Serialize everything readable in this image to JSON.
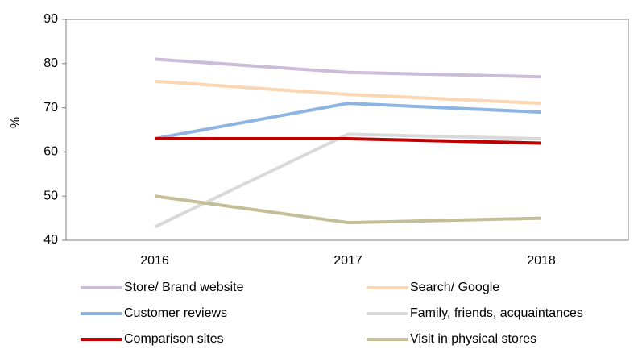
{
  "chart_data": {
    "type": "line",
    "y_label": "%",
    "categories": [
      "2016",
      "2017",
      "2018"
    ],
    "series": [
      {
        "name": "Store/ Brand website",
        "color": "#cbbcd9",
        "values": [
          81,
          78,
          77
        ]
      },
      {
        "name": "Search/ Google",
        "color": "#fcd5b2",
        "values": [
          76,
          73,
          71
        ]
      },
      {
        "name": "Customer reviews",
        "color": "#8eb4e3",
        "values": [
          63,
          71,
          69
        ]
      },
      {
        "name": "Family, friends, acquaintances",
        "color": "#d9d9d9",
        "values": [
          43,
          64,
          63
        ]
      },
      {
        "name": "Comparison sites",
        "color": "#c00000",
        "values": [
          63,
          63,
          62
        ]
      },
      {
        "name": "Visit in physical stores",
        "color": "#c4bd97",
        "values": [
          50,
          44,
          45
        ]
      }
    ],
    "ylim": [
      40,
      90
    ],
    "yticks": [
      40,
      50,
      60,
      70,
      80,
      90
    ],
    "grid": false
  }
}
